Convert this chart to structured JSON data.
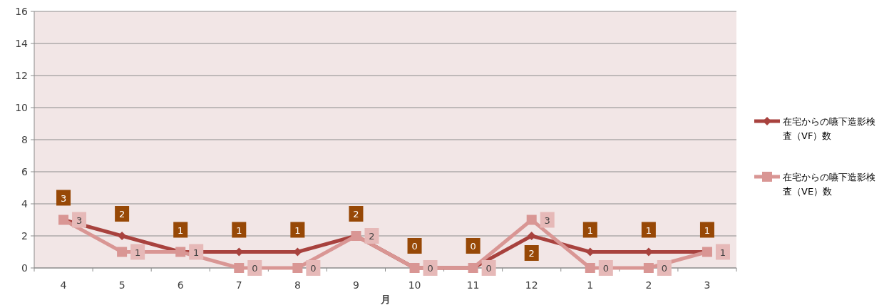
{
  "chart_data": {
    "type": "line",
    "xlabel": "月",
    "categories": [
      "4",
      "5",
      "6",
      "7",
      "8",
      "9",
      "10",
      "11",
      "12",
      "1",
      "2",
      "3"
    ],
    "series": [
      {
        "name": "在宅からの嚥下造影検査（VF）数",
        "color": "#a8423e",
        "marker": "diamond",
        "values": [
          3,
          2,
          1,
          1,
          1,
          2,
          0,
          0,
          2,
          1,
          1,
          1
        ]
      },
      {
        "name": "在宅からの嚥下造影検査（VE）数",
        "color": "#d99694",
        "marker": "square",
        "values": [
          3,
          1,
          1,
          0,
          0,
          2,
          0,
          0,
          3,
          0,
          0,
          1
        ]
      }
    ],
    "ylim": [
      0,
      16
    ],
    "yticks": [
      0,
      2,
      4,
      6,
      8,
      10,
      12,
      14,
      16
    ],
    "grid": "y",
    "legend": "right",
    "data_labels": true
  }
}
